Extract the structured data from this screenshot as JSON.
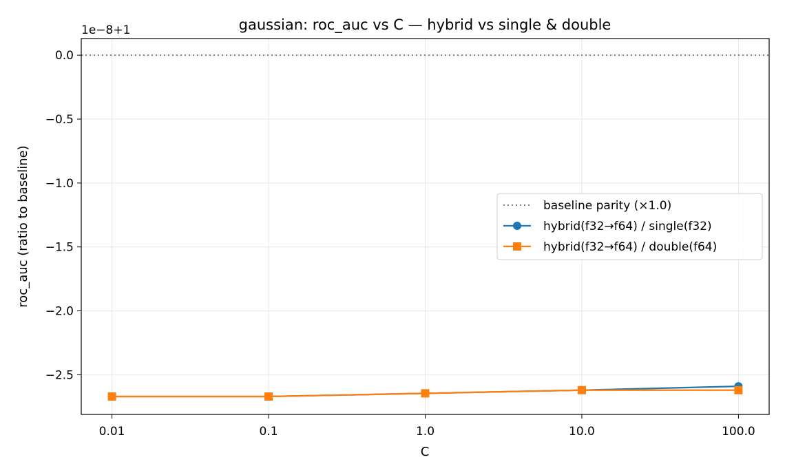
{
  "chart_data": {
    "type": "line",
    "title": "gaussian: roc_auc vs C — hybrid vs single & double",
    "xlabel": "C",
    "ylabel": "roc_auc (ratio to baseline)",
    "x_scale": "log",
    "offset_label": "1e−8+1",
    "x": [
      0.01,
      0.1,
      1.0,
      10.0,
      100.0
    ],
    "x_tick_labels": [
      "0.01",
      "0.1",
      "1.0",
      "10.0",
      "100.0"
    ],
    "y_ticks": [
      0.0,
      -0.5,
      -1.0,
      -1.5,
      -2.0,
      -2.5
    ],
    "y_tick_labels": [
      "0.0",
      "−0.5",
      "−1.0",
      "−1.5",
      "−2.0",
      "−2.5"
    ],
    "ylim": [
      -2.81,
      0.13
    ],
    "grid": true,
    "legend_position": "center-right",
    "baseline": {
      "name": "baseline parity (×1.0)",
      "value": 0.0,
      "color": "#808080",
      "style": "dotted"
    },
    "series": [
      {
        "name": "hybrid(f32→f64) / single(f32)",
        "color": "#1f77b4",
        "marker": "circle",
        "values": [
          -2.67,
          -2.67,
          -2.645,
          -2.62,
          -2.59
        ]
      },
      {
        "name": "hybrid(f32→f64) / double(f64)",
        "color": "#ff7f0e",
        "marker": "square",
        "values": [
          -2.67,
          -2.67,
          -2.645,
          -2.62,
          -2.62
        ]
      }
    ]
  }
}
